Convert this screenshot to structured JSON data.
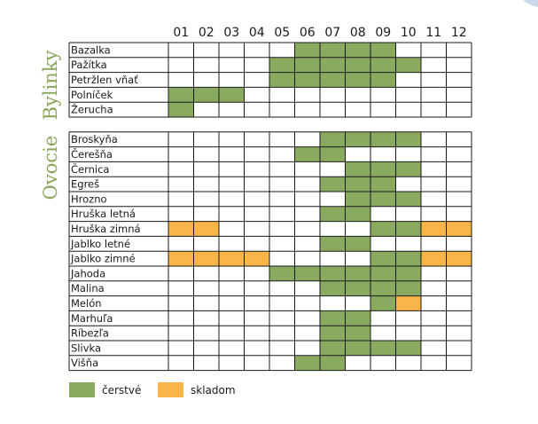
{
  "colors": {
    "fresh": "#8aab5f",
    "stock": "#f9b548",
    "grid": "#1a1a1a",
    "side_text": "#8aa65a"
  },
  "chart_data": {
    "type": "heatmap",
    "title": "",
    "months": [
      "01",
      "02",
      "03",
      "04",
      "05",
      "06",
      "07",
      "08",
      "09",
      "10",
      "11",
      "12"
    ],
    "side_labels": {
      "top": "Bylinky",
      "bottom": "Ovocie"
    },
    "legend": [
      {
        "key": "fresh",
        "label": "čerstvé"
      },
      {
        "key": "stock",
        "label": "skladom"
      }
    ],
    "groups": [
      {
        "name": "Bylinky",
        "rows": [
          {
            "label": "Bazalka",
            "fresh": [
              "06",
              "07",
              "08",
              "09"
            ],
            "stock": []
          },
          {
            "label": "Pažítka",
            "fresh": [
              "05",
              "06",
              "07",
              "08",
              "09",
              "10"
            ],
            "stock": []
          },
          {
            "label": "Petržlen vňať",
            "fresh": [
              "05",
              "06",
              "07",
              "08",
              "09"
            ],
            "stock": []
          },
          {
            "label": "Polníček",
            "fresh": [
              "01",
              "02",
              "03"
            ],
            "stock": []
          },
          {
            "label": "Žerucha",
            "fresh": [
              "01"
            ],
            "stock": []
          }
        ]
      },
      {
        "name": "Ovocie",
        "rows": [
          {
            "label": "Broskyňa",
            "fresh": [
              "07",
              "08",
              "09",
              "10"
            ],
            "stock": []
          },
          {
            "label": "Čerešňa",
            "fresh": [
              "06",
              "07"
            ],
            "stock": []
          },
          {
            "label": "Černica",
            "fresh": [
              "08",
              "09",
              "10"
            ],
            "stock": []
          },
          {
            "label": "Egreš",
            "fresh": [
              "07",
              "08",
              "09"
            ],
            "stock": []
          },
          {
            "label": "Hrozno",
            "fresh": [
              "08",
              "09",
              "10"
            ],
            "stock": []
          },
          {
            "label": "Hruška letná",
            "fresh": [
              "07",
              "08"
            ],
            "stock": []
          },
          {
            "label": "Hruška zimná",
            "fresh": [
              "09",
              "10"
            ],
            "stock": [
              "01",
              "02",
              "11",
              "12"
            ]
          },
          {
            "label": "Jablko letné",
            "fresh": [
              "07",
              "08"
            ],
            "stock": []
          },
          {
            "label": "Jablko zimné",
            "fresh": [
              "09",
              "10"
            ],
            "stock": [
              "01",
              "02",
              "03",
              "04",
              "11",
              "12"
            ]
          },
          {
            "label": "Jahoda",
            "fresh": [
              "05",
              "06",
              "07",
              "08",
              "09",
              "10"
            ],
            "stock": []
          },
          {
            "label": "Malina",
            "fresh": [
              "07",
              "08",
              "09",
              "10"
            ],
            "stock": []
          },
          {
            "label": "Melón",
            "fresh": [
              "09"
            ],
            "stock": [
              "10"
            ]
          },
          {
            "label": "Marhuľa",
            "fresh": [
              "07",
              "08"
            ],
            "stock": []
          },
          {
            "label": "Ríbezľa",
            "fresh": [
              "07",
              "08"
            ],
            "stock": []
          },
          {
            "label": "Slivka",
            "fresh": [
              "07",
              "08",
              "09",
              "10"
            ],
            "stock": []
          },
          {
            "label": "Višňa",
            "fresh": [
              "06",
              "07"
            ],
            "stock": []
          }
        ]
      }
    ]
  }
}
